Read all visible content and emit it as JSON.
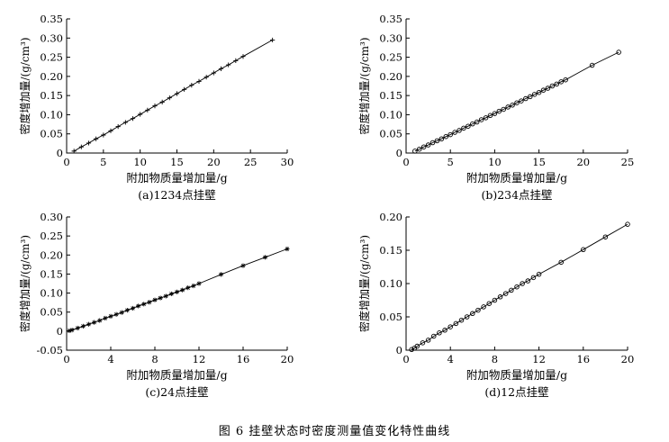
{
  "figure": {
    "caption": "图 6   挂壁状态时密度测量值变化特性曲线"
  },
  "chart_data": [
    {
      "type": "line",
      "subtitle": "(a)1234点挂壁",
      "xlabel": "附加物质量增加量/g",
      "ylabel": "密度增加量/(g/cm³)",
      "xlim": [
        0,
        30
      ],
      "ylim": [
        0,
        0.35
      ],
      "xticks": [
        "0",
        "5",
        "10",
        "15",
        "20",
        "25",
        "30"
      ],
      "yticks": [
        "0",
        "0.05",
        "0.10",
        "0.15",
        "0.20",
        "0.25",
        "0.30",
        "0.35"
      ],
      "marker": "plus",
      "grid": false,
      "series": [
        {
          "x": [
            1,
            2,
            3,
            4,
            5,
            6,
            7,
            8,
            9,
            10,
            11,
            12,
            13,
            14,
            15,
            16,
            17,
            18,
            19,
            20,
            21,
            22,
            23,
            24,
            28
          ],
          "y": [
            0.005,
            0.016,
            0.026,
            0.037,
            0.047,
            0.058,
            0.069,
            0.08,
            0.09,
            0.101,
            0.112,
            0.123,
            0.133,
            0.144,
            0.155,
            0.166,
            0.177,
            0.187,
            0.198,
            0.209,
            0.22,
            0.23,
            0.241,
            0.252,
            0.295
          ]
        }
      ]
    },
    {
      "type": "line",
      "subtitle": "(b)234点挂壁",
      "xlabel": "附加物质量增加量/g",
      "ylabel": "密度增加量/(g/cm³)",
      "xlim": [
        0,
        25
      ],
      "ylim": [
        0,
        0.35
      ],
      "xticks": [
        "0",
        "5",
        "10",
        "15",
        "20",
        "25"
      ],
      "yticks": [
        "0",
        "0.05",
        "0.10",
        "0.15",
        "0.20",
        "0.25",
        "0.30",
        "0.35"
      ],
      "marker": "circle",
      "grid": false,
      "series": [
        {
          "x": [
            1,
            1.5,
            2,
            2.5,
            3,
            3.5,
            4,
            4.5,
            5,
            5.5,
            6,
            6.5,
            7,
            7.5,
            8,
            8.5,
            9,
            9.5,
            10,
            10.5,
            11,
            11.5,
            12,
            12.5,
            13,
            13.5,
            14,
            14.5,
            15,
            15.5,
            16,
            16.5,
            17,
            17.5,
            18,
            21,
            24
          ],
          "y": [
            0.005,
            0.01,
            0.016,
            0.021,
            0.027,
            0.032,
            0.037,
            0.043,
            0.048,
            0.054,
            0.059,
            0.065,
            0.07,
            0.076,
            0.081,
            0.087,
            0.092,
            0.098,
            0.103,
            0.109,
            0.114,
            0.12,
            0.125,
            0.131,
            0.136,
            0.142,
            0.147,
            0.153,
            0.158,
            0.164,
            0.169,
            0.175,
            0.18,
            0.186,
            0.191,
            0.229,
            0.263
          ]
        }
      ]
    },
    {
      "type": "line",
      "subtitle": "(c)24点挂壁",
      "xlabel": "附加物质量增加量/g",
      "ylabel": "密度增加量/(g/cm³)",
      "xlim": [
        0,
        20
      ],
      "ylim": [
        -0.05,
        0.3
      ],
      "xticks": [
        "0",
        "4",
        "8",
        "12",
        "16",
        "20"
      ],
      "yticks": [
        "-0.05",
        "0",
        "0.05",
        "0.10",
        "0.15",
        "0.20",
        "0.25",
        "0.30"
      ],
      "marker": "asterisk",
      "grid": false,
      "series": [
        {
          "x": [
            0.25,
            0.5,
            1,
            1.5,
            2,
            2.5,
            3,
            3.5,
            4,
            4.5,
            5,
            5.5,
            6,
            6.5,
            7,
            7.5,
            8,
            8.5,
            9,
            9.5,
            10,
            10.5,
            11,
            11.5,
            12,
            14,
            16,
            18,
            20
          ],
          "y": [
            0.001,
            0.003,
            0.008,
            0.013,
            0.018,
            0.023,
            0.028,
            0.034,
            0.039,
            0.044,
            0.049,
            0.055,
            0.06,
            0.066,
            0.071,
            0.076,
            0.082,
            0.087,
            0.092,
            0.098,
            0.103,
            0.108,
            0.114,
            0.119,
            0.125,
            0.149,
            0.172,
            0.194,
            0.216
          ]
        }
      ]
    },
    {
      "type": "line",
      "subtitle": "(d)12点挂壁",
      "xlabel": "附加物质量增加量/g",
      "ylabel": "密度增加量/(g/cm³)",
      "xlim": [
        0,
        20
      ],
      "ylim": [
        0,
        0.2
      ],
      "xticks": [
        "0",
        "4",
        "8",
        "12",
        "16",
        "20"
      ],
      "yticks": [
        "0",
        "0.05",
        "0.10",
        "0.15",
        "0.20"
      ],
      "marker": "circle",
      "grid": false,
      "series": [
        {
          "x": [
            0.5,
            0.75,
            1,
            1.5,
            2,
            2.5,
            3,
            3.5,
            4,
            4.5,
            5,
            5.5,
            6,
            6.5,
            7,
            7.5,
            8,
            8.5,
            9,
            9.5,
            10,
            10.5,
            11,
            11.5,
            12,
            14,
            16,
            18,
            20
          ],
          "y": [
            0.001,
            0.003,
            0.006,
            0.011,
            0.015,
            0.021,
            0.026,
            0.03,
            0.035,
            0.04,
            0.045,
            0.05,
            0.055,
            0.06,
            0.065,
            0.07,
            0.075,
            0.08,
            0.085,
            0.09,
            0.095,
            0.1,
            0.104,
            0.109,
            0.114,
            0.132,
            0.151,
            0.17,
            0.189
          ]
        }
      ]
    }
  ]
}
